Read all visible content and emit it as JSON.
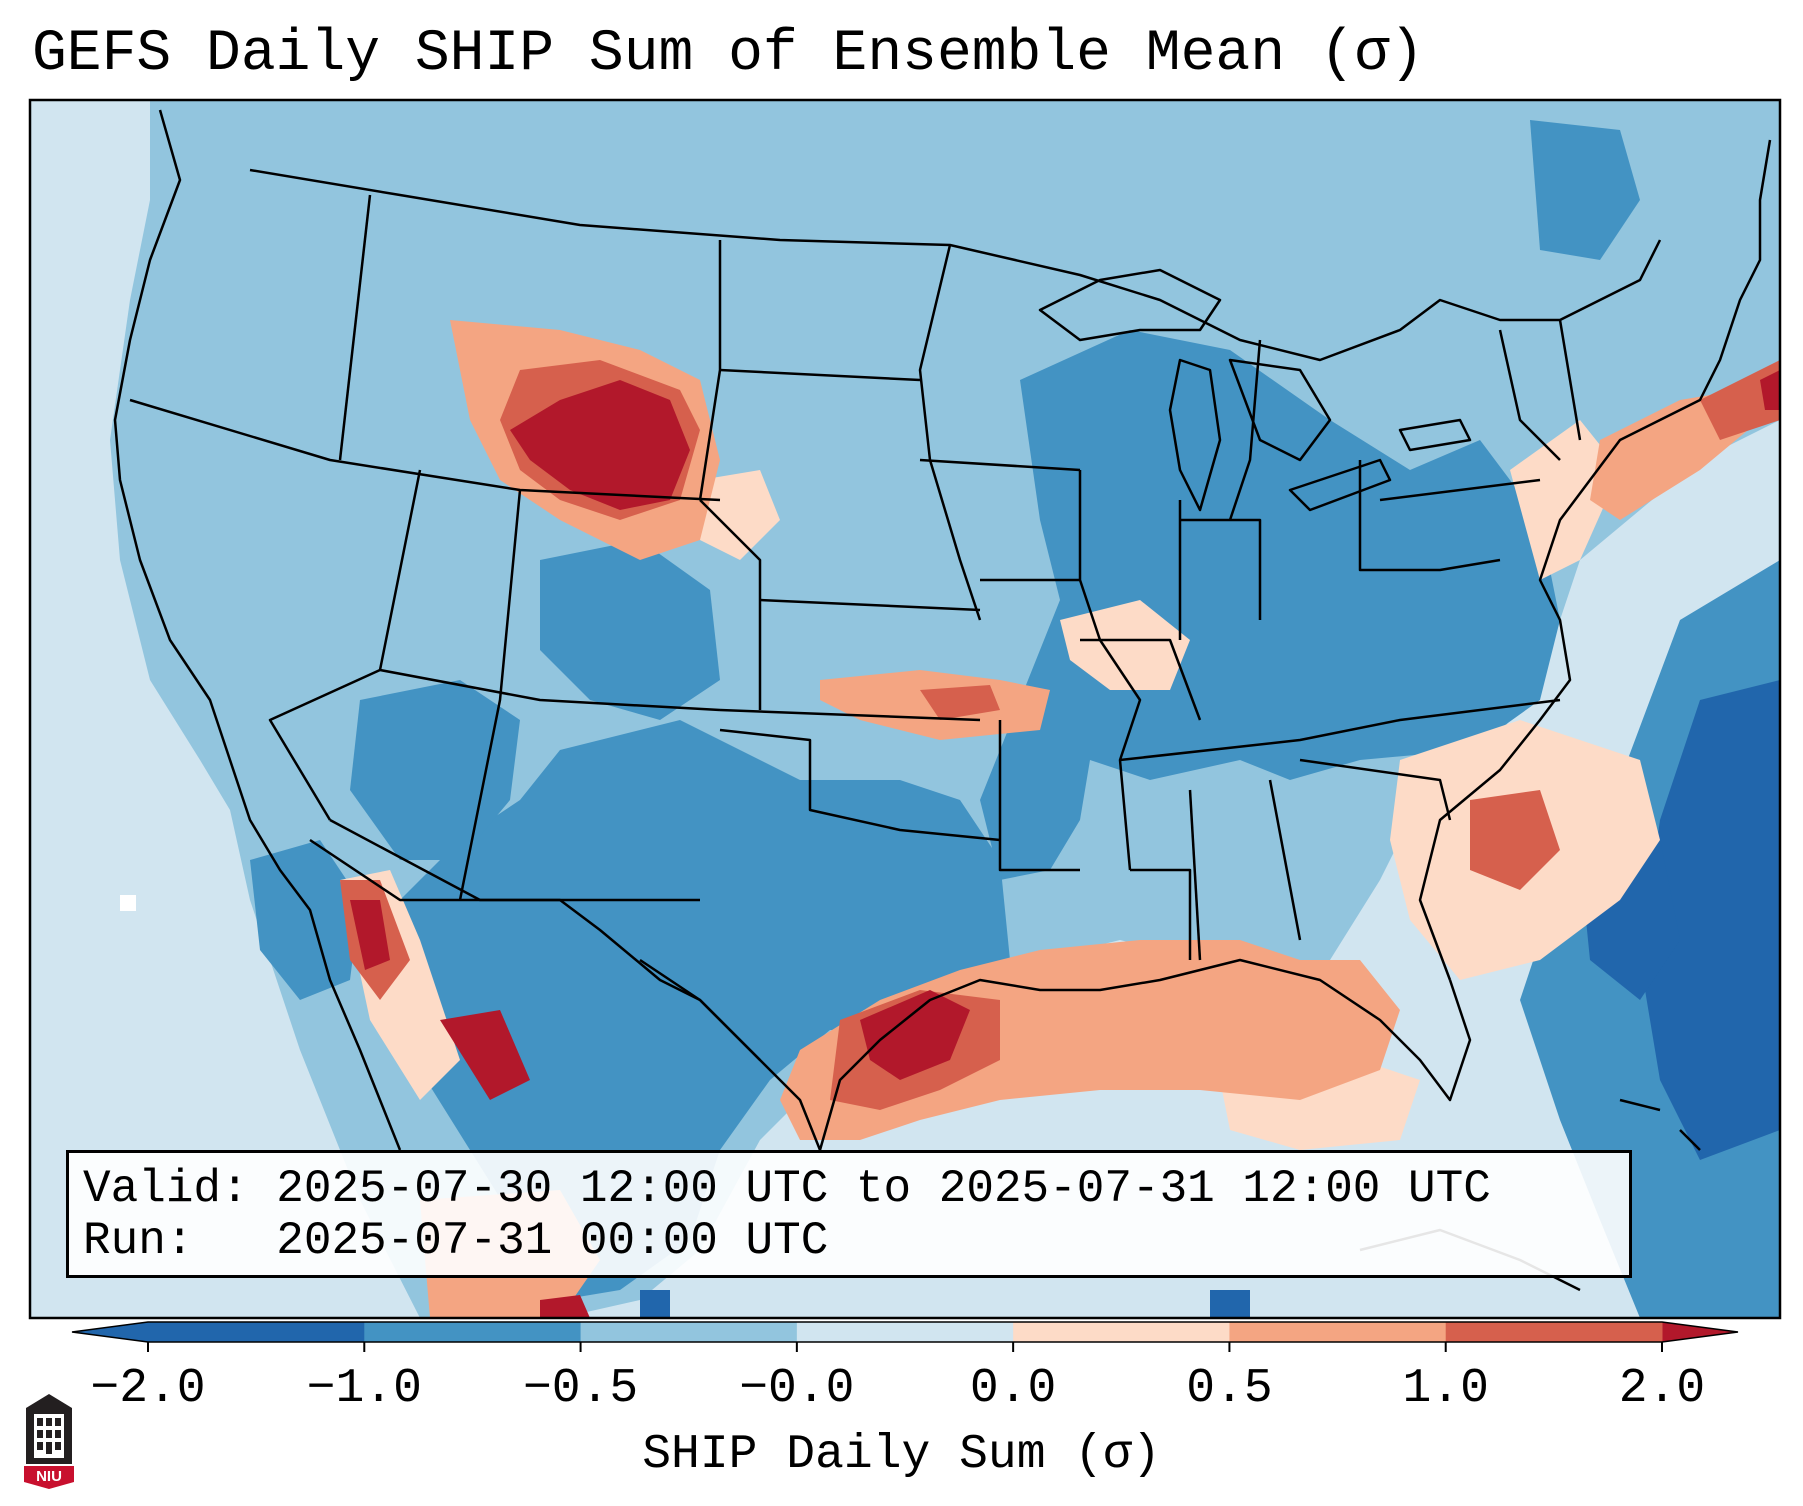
{
  "title": "GEFS Daily SHIP Sum of Ensemble Mean (σ)",
  "info": {
    "valid_line": "Valid: 2025-07-30 12:00 UTC to 2025-07-31 12:00 UTC",
    "run_line": "Run:   2025-07-31 00:00 UTC"
  },
  "colorbar": {
    "label": "SHIP Daily Sum (σ)",
    "ticks": [
      "−2.0",
      "−1.0",
      "−0.5",
      "−0.0",
      "0.0",
      "0.5",
      "1.0",
      "2.0"
    ],
    "colors": [
      "#2166ac",
      "#4393c3",
      "#92c5de",
      "#d1e5f0",
      "#fddbc7",
      "#f4a582",
      "#d6604d",
      "#b2182b"
    ],
    "extend": "both"
  },
  "logo": {
    "text": "NIU",
    "color": "#c8102e"
  },
  "map": {
    "projection": "conic, CONUS",
    "features": [
      "states",
      "coastlines",
      "borders",
      "great-lakes"
    ]
  }
}
